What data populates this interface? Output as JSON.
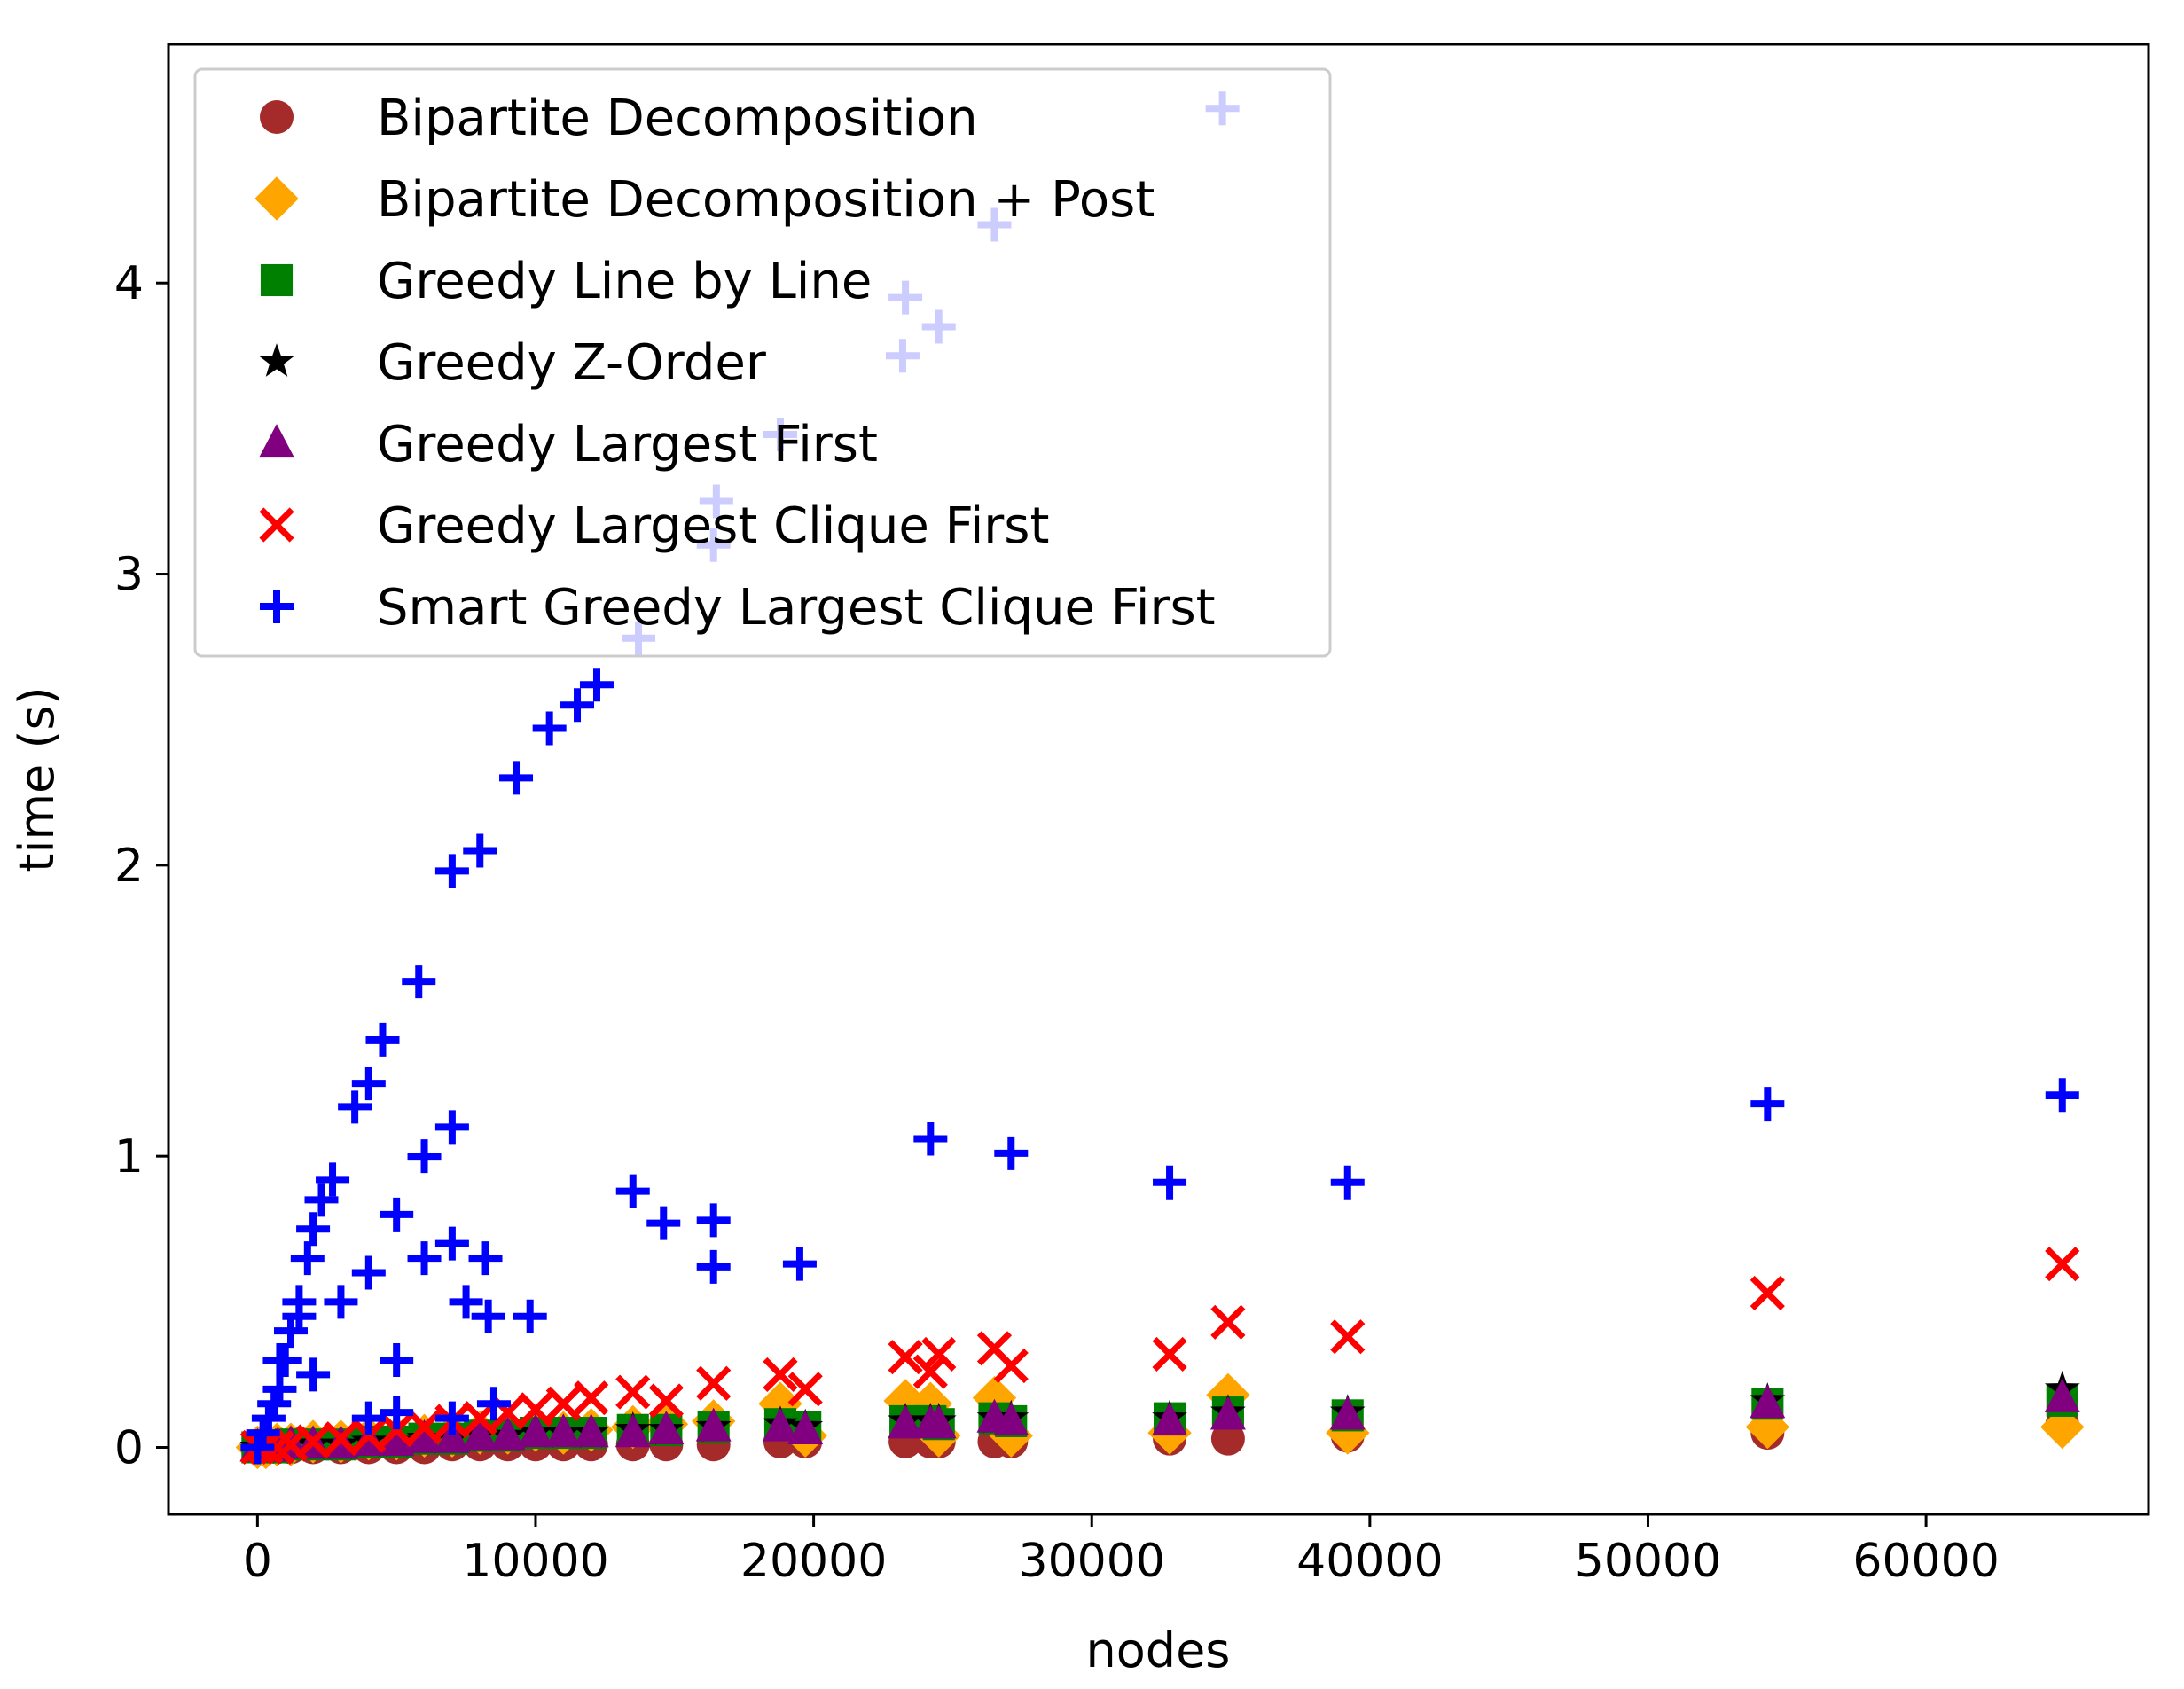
{
  "chart_data": {
    "type": "scatter",
    "title": "",
    "xlabel": "nodes",
    "ylabel": "time (s)",
    "xlim": [
      -3200,
      68000
    ],
    "ylim": [
      -0.23,
      4.82
    ],
    "x_ticks": [
      0,
      10000,
      20000,
      30000,
      40000,
      50000,
      60000
    ],
    "x_tick_labels": [
      "0",
      "10000",
      "20000",
      "30000",
      "40000",
      "50000",
      "60000"
    ],
    "y_ticks": [
      0,
      1,
      2,
      3,
      4
    ],
    "y_tick_labels": [
      "0",
      "1",
      "2",
      "3",
      "4"
    ],
    "grid": false,
    "legend_placement": "upper-left",
    "series": [
      {
        "name": "Bipartite Decomposition",
        "marker": "circle",
        "color": "#a52a2a",
        "points": [
          [
            0,
            0.0
          ],
          [
            300,
            0.0
          ],
          [
            700,
            0.0
          ],
          [
            1200,
            0.0
          ],
          [
            2000,
            0.0
          ],
          [
            3000,
            0.0
          ],
          [
            4000,
            0.0
          ],
          [
            5000,
            0.0
          ],
          [
            6000,
            0.0
          ],
          [
            7000,
            0.01
          ],
          [
            8000,
            0.01
          ],
          [
            9000,
            0.01
          ],
          [
            10000,
            0.01
          ],
          [
            11000,
            0.01
          ],
          [
            12000,
            0.01
          ],
          [
            13500,
            0.01
          ],
          [
            14700,
            0.01
          ],
          [
            16400,
            0.01
          ],
          [
            18800,
            0.02
          ],
          [
            19700,
            0.02
          ],
          [
            23300,
            0.02
          ],
          [
            24200,
            0.02
          ],
          [
            24500,
            0.02
          ],
          [
            26500,
            0.02
          ],
          [
            27100,
            0.02
          ],
          [
            32800,
            0.03
          ],
          [
            34900,
            0.03
          ],
          [
            39200,
            0.04
          ],
          [
            54300,
            0.05
          ],
          [
            64900,
            0.08
          ]
        ]
      },
      {
        "name": "Bipartite Decomposition + Post",
        "marker": "diamond",
        "color": "#ffa500",
        "points": [
          [
            0,
            0.0
          ],
          [
            300,
            0.0
          ],
          [
            700,
            0.01
          ],
          [
            1200,
            0.01
          ],
          [
            2000,
            0.02
          ],
          [
            3000,
            0.02
          ],
          [
            4000,
            0.03
          ],
          [
            5000,
            0.03
          ],
          [
            6000,
            0.04
          ],
          [
            7000,
            0.04
          ],
          [
            8000,
            0.05
          ],
          [
            9000,
            0.05
          ],
          [
            10000,
            0.06
          ],
          [
            11000,
            0.05
          ],
          [
            12000,
            0.06
          ],
          [
            13500,
            0.07
          ],
          [
            14700,
            0.08
          ],
          [
            16400,
            0.09
          ],
          [
            18800,
            0.15
          ],
          [
            19700,
            0.04
          ],
          [
            23300,
            0.16
          ],
          [
            24200,
            0.15
          ],
          [
            24500,
            0.04
          ],
          [
            26500,
            0.17
          ],
          [
            27100,
            0.04
          ],
          [
            32800,
            0.05
          ],
          [
            34900,
            0.18
          ],
          [
            39200,
            0.05
          ],
          [
            54300,
            0.07
          ],
          [
            64900,
            0.07
          ]
        ]
      },
      {
        "name": "Greedy Line by Line",
        "marker": "square",
        "color": "#008000",
        "points": [
          [
            0,
            0.0
          ],
          [
            300,
            0.0
          ],
          [
            700,
            0.0
          ],
          [
            1200,
            0.01
          ],
          [
            2000,
            0.01
          ],
          [
            3000,
            0.01
          ],
          [
            4000,
            0.02
          ],
          [
            5000,
            0.02
          ],
          [
            6000,
            0.03
          ],
          [
            7000,
            0.03
          ],
          [
            8000,
            0.04
          ],
          [
            9000,
            0.04
          ],
          [
            10000,
            0.05
          ],
          [
            11000,
            0.05
          ],
          [
            12000,
            0.05
          ],
          [
            13500,
            0.06
          ],
          [
            14700,
            0.06
          ],
          [
            16400,
            0.07
          ],
          [
            18800,
            0.08
          ],
          [
            19700,
            0.07
          ],
          [
            23300,
            0.09
          ],
          [
            24200,
            0.09
          ],
          [
            24500,
            0.08
          ],
          [
            26500,
            0.1
          ],
          [
            27100,
            0.09
          ],
          [
            32800,
            0.1
          ],
          [
            34900,
            0.12
          ],
          [
            39200,
            0.11
          ],
          [
            54300,
            0.15
          ],
          [
            64900,
            0.16
          ]
        ]
      },
      {
        "name": "Greedy Z-Order",
        "marker": "star",
        "color": "#000000",
        "points": [
          [
            0,
            0.0
          ],
          [
            300,
            0.0
          ],
          [
            700,
            0.0
          ],
          [
            1200,
            0.01
          ],
          [
            2000,
            0.01
          ],
          [
            3000,
            0.01
          ],
          [
            4000,
            0.02
          ],
          [
            5000,
            0.02
          ],
          [
            6000,
            0.03
          ],
          [
            7000,
            0.03
          ],
          [
            8000,
            0.04
          ],
          [
            9000,
            0.04
          ],
          [
            10000,
            0.05
          ],
          [
            11000,
            0.05
          ],
          [
            12000,
            0.05
          ],
          [
            13500,
            0.06
          ],
          [
            14700,
            0.06
          ],
          [
            16400,
            0.07
          ],
          [
            18800,
            0.08
          ],
          [
            19700,
            0.07
          ],
          [
            23300,
            0.09
          ],
          [
            24200,
            0.09
          ],
          [
            24500,
            0.09
          ],
          [
            26500,
            0.1
          ],
          [
            27100,
            0.1
          ],
          [
            32800,
            0.1
          ],
          [
            34900,
            0.12
          ],
          [
            39200,
            0.12
          ],
          [
            54300,
            0.16
          ],
          [
            64900,
            0.2
          ]
        ]
      },
      {
        "name": "Greedy Largest First",
        "marker": "triangle",
        "color": "#800080",
        "points": [
          [
            0,
            0.0
          ],
          [
            300,
            0.0
          ],
          [
            700,
            0.0
          ],
          [
            1200,
            0.01
          ],
          [
            2000,
            0.01
          ],
          [
            3000,
            0.01
          ],
          [
            4000,
            0.02
          ],
          [
            5000,
            0.02
          ],
          [
            6000,
            0.03
          ],
          [
            7000,
            0.03
          ],
          [
            8000,
            0.04
          ],
          [
            9000,
            0.04
          ],
          [
            10000,
            0.05
          ],
          [
            11000,
            0.05
          ],
          [
            12000,
            0.05
          ],
          [
            13500,
            0.05
          ],
          [
            14700,
            0.06
          ],
          [
            16400,
            0.07
          ],
          [
            18800,
            0.07
          ],
          [
            19700,
            0.06
          ],
          [
            23300,
            0.08
          ],
          [
            24200,
            0.08
          ],
          [
            24500,
            0.08
          ],
          [
            26500,
            0.1
          ],
          [
            27100,
            0.09
          ],
          [
            32800,
            0.09
          ],
          [
            34900,
            0.11
          ],
          [
            39200,
            0.11
          ],
          [
            54300,
            0.15
          ],
          [
            64900,
            0.17
          ]
        ]
      },
      {
        "name": "Greedy Largest Clique First",
        "marker": "x",
        "color": "#ff0000",
        "points": [
          [
            0,
            0.0
          ],
          [
            300,
            0.0
          ],
          [
            700,
            0.0
          ],
          [
            1200,
            0.01
          ],
          [
            2000,
            0.02
          ],
          [
            3000,
            0.03
          ],
          [
            4000,
            0.04
          ],
          [
            5000,
            0.06
          ],
          [
            6000,
            0.07
          ],
          [
            7000,
            0.09
          ],
          [
            8000,
            0.1
          ],
          [
            9000,
            0.12
          ],
          [
            10000,
            0.13
          ],
          [
            11000,
            0.15
          ],
          [
            12000,
            0.17
          ],
          [
            13500,
            0.19
          ],
          [
            14700,
            0.16
          ],
          [
            16400,
            0.22
          ],
          [
            18800,
            0.25
          ],
          [
            19700,
            0.2
          ],
          [
            23300,
            0.31
          ],
          [
            24200,
            0.26
          ],
          [
            24500,
            0.32
          ],
          [
            26500,
            0.34
          ],
          [
            27100,
            0.28
          ],
          [
            32800,
            0.32
          ],
          [
            34900,
            0.43
          ],
          [
            39200,
            0.38
          ],
          [
            54300,
            0.53
          ],
          [
            64900,
            0.63
          ]
        ]
      },
      {
        "name": "Smart Greedy Largest Clique First",
        "marker": "plus",
        "color": "#0000ff",
        "points": [
          [
            0,
            0.0
          ],
          [
            200,
            0.05
          ],
          [
            400,
            0.1
          ],
          [
            600,
            0.15
          ],
          [
            800,
            0.2
          ],
          [
            1000,
            0.3
          ],
          [
            1200,
            0.4
          ],
          [
            1500,
            0.5
          ],
          [
            1800,
            0.65
          ],
          [
            2000,
            0.75
          ],
          [
            2300,
            0.85
          ],
          [
            2700,
            0.92
          ],
          [
            3500,
            1.17
          ],
          [
            4000,
            1.25
          ],
          [
            4500,
            1.4
          ],
          [
            5800,
            1.6
          ],
          [
            7000,
            1.98
          ],
          [
            8000,
            2.05
          ],
          [
            9300,
            2.3
          ],
          [
            10500,
            2.47
          ],
          [
            11500,
            2.55
          ],
          [
            12200,
            2.62
          ],
          [
            13700,
            2.78
          ],
          [
            16400,
            3.1
          ],
          [
            16500,
            3.25
          ],
          [
            18800,
            3.48
          ],
          [
            23200,
            3.75
          ],
          [
            23300,
            3.95
          ],
          [
            24500,
            3.85
          ],
          [
            26500,
            4.2
          ],
          [
            34700,
            4.6
          ],
          [
            5000,
            0.8
          ],
          [
            6000,
            1.0
          ],
          [
            7000,
            1.1
          ],
          [
            800,
            0.3
          ],
          [
            1500,
            0.45
          ],
          [
            2000,
            0.25
          ],
          [
            3000,
            0.5
          ],
          [
            4000,
            0.6
          ],
          [
            5000,
            0.3
          ],
          [
            6000,
            0.65
          ],
          [
            7000,
            0.7
          ],
          [
            7500,
            0.5
          ],
          [
            8200,
            0.65
          ],
          [
            8300,
            0.45
          ],
          [
            9800,
            0.45
          ],
          [
            4000,
            0.1
          ],
          [
            5000,
            0.12
          ],
          [
            7000,
            0.1
          ],
          [
            8500,
            0.15
          ],
          [
            13500,
            0.88
          ],
          [
            14600,
            0.77
          ],
          [
            16400,
            0.78
          ],
          [
            16400,
            0.62
          ],
          [
            19500,
            0.63
          ],
          [
            24200,
            1.06
          ],
          [
            27100,
            1.01
          ],
          [
            32800,
            0.91
          ],
          [
            39200,
            0.91
          ],
          [
            54300,
            1.18
          ],
          [
            64900,
            1.21
          ]
        ]
      }
    ]
  }
}
